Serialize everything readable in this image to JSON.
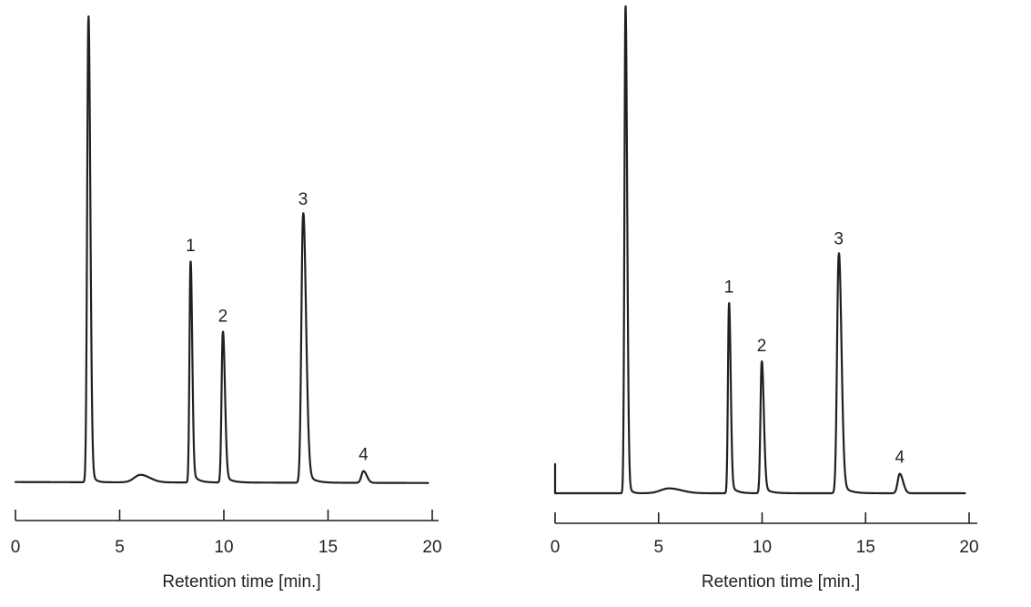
{
  "chart_data": [
    {
      "type": "line",
      "title": "",
      "xlabel": "Retention time [min.]",
      "ylabel": "",
      "xlim": [
        0,
        20
      ],
      "x_ticks": [
        "0",
        "5",
        "10",
        "15",
        "20"
      ],
      "grid": false,
      "legend": "none",
      "line_color": "#231f20",
      "baseline_start": 0.02,
      "baseline_end": 0.018,
      "trace_end_min": 19.8,
      "peaks": [
        {
          "label": "",
          "rt": 3.5,
          "height": 0.99,
          "sigma_left": 0.06,
          "sigma_right": 0.09,
          "tail": 0.15
        },
        {
          "label": "",
          "rt": 6.0,
          "height": 0.016,
          "sigma_left": 0.3,
          "sigma_right": 0.45,
          "tail": 0.0
        },
        {
          "label": "1",
          "rt": 8.4,
          "height": 0.47,
          "sigma_left": 0.05,
          "sigma_right": 0.08,
          "tail": 0.25
        },
        {
          "label": "2",
          "rt": 9.95,
          "height": 0.32,
          "sigma_left": 0.06,
          "sigma_right": 0.1,
          "tail": 0.3
        },
        {
          "label": "3",
          "rt": 13.8,
          "height": 0.57,
          "sigma_left": 0.08,
          "sigma_right": 0.14,
          "tail": 0.32
        },
        {
          "label": "4",
          "rt": 16.7,
          "height": 0.025,
          "sigma_left": 0.1,
          "sigma_right": 0.16,
          "tail": 0.0
        }
      ]
    },
    {
      "type": "line",
      "title": "",
      "xlabel": "Retention time [min.]",
      "ylabel": "",
      "xlim": [
        0,
        20
      ],
      "x_ticks": [
        "0",
        "5",
        "10",
        "15",
        "20"
      ],
      "grid": false,
      "legend": "none",
      "line_color": "#231f20",
      "baseline_start": 0.0,
      "baseline_end": 0.0,
      "trace_end_min": 19.8,
      "injection_spike": 0.06,
      "peaks": [
        {
          "label": "",
          "rt": 3.4,
          "height": 1.0,
          "sigma_left": 0.05,
          "sigma_right": 0.08,
          "tail": 0.12
        },
        {
          "label": "",
          "rt": 5.5,
          "height": 0.01,
          "sigma_left": 0.4,
          "sigma_right": 0.6,
          "tail": 0.0
        },
        {
          "label": "1",
          "rt": 8.4,
          "height": 0.39,
          "sigma_left": 0.05,
          "sigma_right": 0.08,
          "tail": 0.25
        },
        {
          "label": "2",
          "rt": 9.98,
          "height": 0.27,
          "sigma_left": 0.06,
          "sigma_right": 0.1,
          "tail": 0.3
        },
        {
          "label": "3",
          "rt": 13.7,
          "height": 0.49,
          "sigma_left": 0.08,
          "sigma_right": 0.13,
          "tail": 0.32
        },
        {
          "label": "4",
          "rt": 16.65,
          "height": 0.04,
          "sigma_left": 0.1,
          "sigma_right": 0.16,
          "tail": 0.0
        }
      ]
    }
  ]
}
